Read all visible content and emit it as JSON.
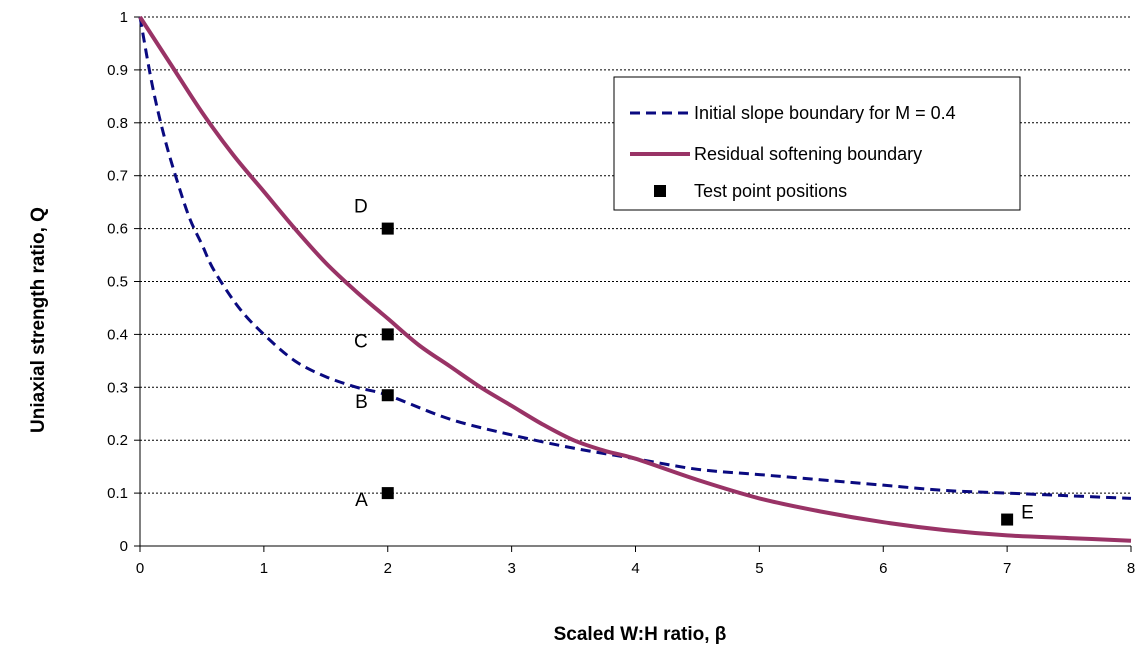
{
  "chart_data": {
    "type": "line",
    "xlabel": "Scaled W:H ratio, β",
    "ylabel": "Uniaxial  strength  ratio,  Q",
    "xlim": [
      0,
      8
    ],
    "ylim": [
      0,
      1
    ],
    "x_ticks": [
      "0",
      "1",
      "2",
      "3",
      "4",
      "5",
      "6",
      "7",
      "8"
    ],
    "y_ticks": [
      "0",
      "0.1",
      "0.2",
      "0.3",
      "0.4",
      "0.5",
      "0.6",
      "0.7",
      "0.8",
      "0.9",
      "1"
    ],
    "grid": "horizontal dotted",
    "legend_position": "top-right",
    "series": [
      {
        "name": "Initial slope boundary for M = 0.4",
        "style": "dashed",
        "color": "#0a0a80",
        "x": [
          0,
          0.1,
          0.2,
          0.3,
          0.4,
          0.5,
          0.6,
          0.8,
          1.0,
          1.25,
          1.5,
          1.75,
          2.0,
          2.5,
          3.0,
          3.5,
          4.0,
          4.5,
          5.0,
          5.5,
          6.0,
          6.5,
          7.0,
          7.5,
          8.0
        ],
        "y": [
          1.0,
          0.87,
          0.77,
          0.69,
          0.62,
          0.57,
          0.52,
          0.45,
          0.4,
          0.35,
          0.32,
          0.3,
          0.285,
          0.24,
          0.21,
          0.185,
          0.165,
          0.145,
          0.135,
          0.125,
          0.115,
          0.105,
          0.1,
          0.095,
          0.09
        ]
      },
      {
        "name": "Residual softening boundary",
        "style": "solid",
        "color": "#993366",
        "x": [
          0,
          0.25,
          0.5,
          0.75,
          1.0,
          1.25,
          1.5,
          1.75,
          2.0,
          2.25,
          2.5,
          2.75,
          3.0,
          3.25,
          3.5,
          3.75,
          4.0,
          4.5,
          5.0,
          5.5,
          6.0,
          6.5,
          7.0,
          7.5,
          8.0
        ],
        "y": [
          1.0,
          0.91,
          0.82,
          0.74,
          0.67,
          0.6,
          0.535,
          0.48,
          0.43,
          0.38,
          0.34,
          0.3,
          0.265,
          0.23,
          0.2,
          0.18,
          0.165,
          0.125,
          0.09,
          0.065,
          0.045,
          0.03,
          0.02,
          0.015,
          0.01
        ]
      }
    ],
    "test_points": {
      "name": "Test point positions",
      "color": "#000000",
      "points": [
        {
          "label": "A",
          "x": 2,
          "y": 0.1,
          "label_side": "left"
        },
        {
          "label": "B",
          "x": 2,
          "y": 0.285,
          "label_side": "left"
        },
        {
          "label": "C",
          "x": 2,
          "y": 0.4,
          "label_side": "left"
        },
        {
          "label": "D",
          "x": 2,
          "y": 0.6,
          "label_side": "left-above"
        },
        {
          "label": "E",
          "x": 7,
          "y": 0.05,
          "label_side": "right"
        }
      ]
    }
  }
}
